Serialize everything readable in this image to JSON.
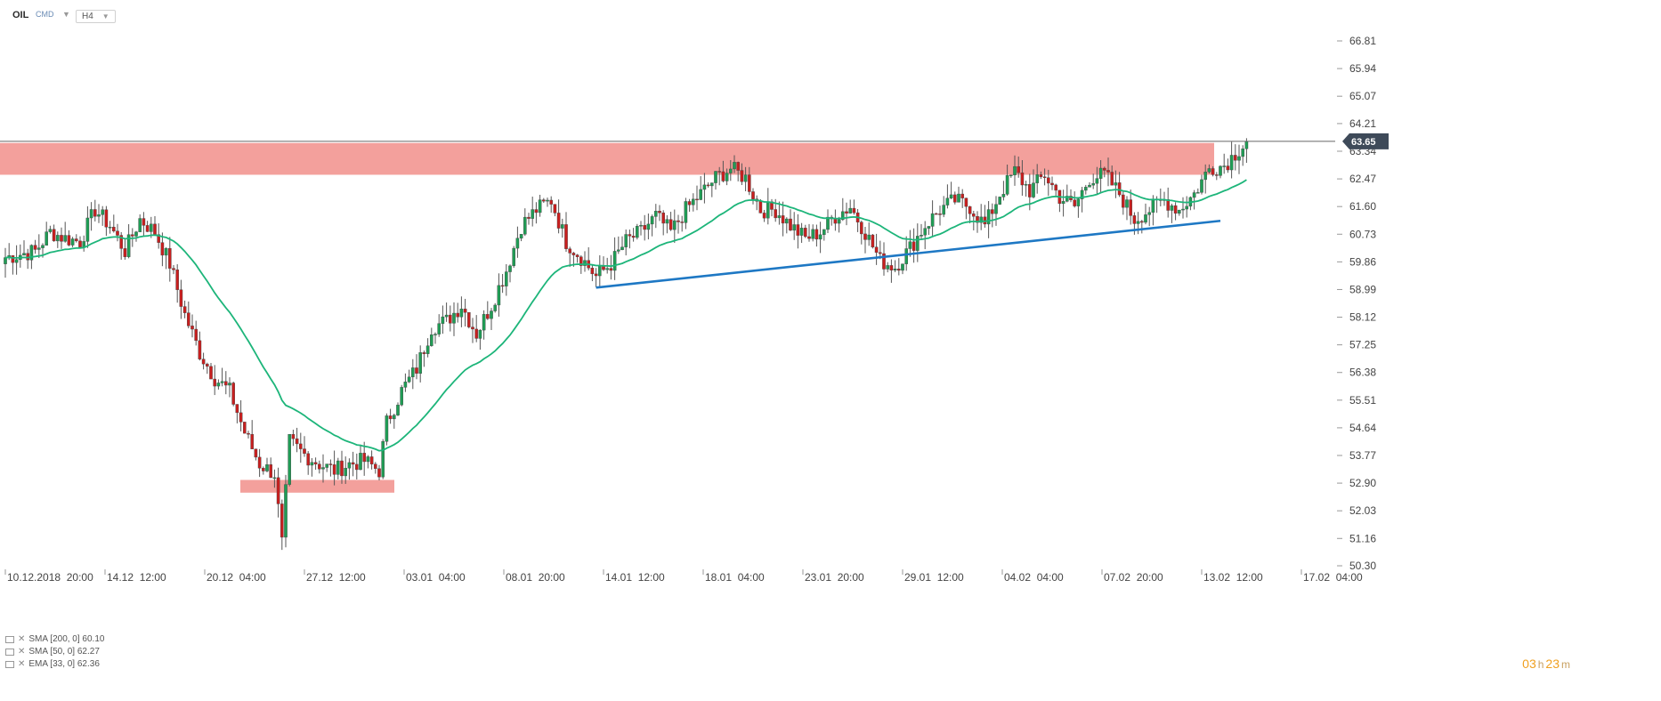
{
  "toolbar": {
    "symbol": "OIL",
    "instrument_type": "CMD",
    "timeframe": "H4"
  },
  "chart_data": {
    "type": "candlestick",
    "symbol": "OIL",
    "timeframe": "H4",
    "ylim": [
      50.3,
      67.5
    ],
    "y_ticks": [
      "66.81",
      "65.94",
      "65.07",
      "64.21",
      "63.34",
      "62.47",
      "61.60",
      "60.73",
      "59.86",
      "58.99",
      "58.12",
      "57.25",
      "56.38",
      "55.51",
      "54.64",
      "53.77",
      "52.90",
      "52.03",
      "51.16",
      "50.30"
    ],
    "x_ticks": [
      "10.12.2018  20:00",
      "14.12  12:00",
      "20.12  04:00",
      "27.12  12:00",
      "03.01  04:00",
      "08.01  20:00",
      "14.01  12:00",
      "18.01  04:00",
      "23.01  20:00",
      "29.01  12:00",
      "04.02  04:00",
      "07.02  20:00",
      "13.02  12:00",
      "17.02  04:00"
    ],
    "current_price": {
      "value": 63.65,
      "label": "63.65"
    },
    "resistance_zone": [
      62.6,
      63.6
    ],
    "support_zone": [
      52.6,
      53.0
    ],
    "trendline": {
      "from_bar": 158,
      "from_price": 59.05,
      "to_bar": 325,
      "to_price": 61.15
    },
    "indicators": [
      {
        "name": "SMA",
        "period": 200,
        "offset": 0,
        "value": "60.10",
        "text": "SMA [200,  0] 60.10"
      },
      {
        "name": "SMA",
        "period": 50,
        "offset": 0,
        "value": "62.27",
        "text": "SMA [50,  0] 62.27"
      },
      {
        "name": "EMA",
        "period": 33,
        "offset": 0,
        "value": "62.36",
        "text": "EMA [33,  0] 62.36",
        "color": "#1db57a"
      }
    ],
    "anchors": [
      [
        0,
        60.0
      ],
      [
        8,
        60.2
      ],
      [
        12,
        60.8
      ],
      [
        16,
        60.6
      ],
      [
        20,
        60.5
      ],
      [
        24,
        61.5
      ],
      [
        28,
        61.0
      ],
      [
        32,
        60.2
      ],
      [
        36,
        61.2
      ],
      [
        40,
        60.8
      ],
      [
        44,
        59.8
      ],
      [
        48,
        58.2
      ],
      [
        52,
        57.0
      ],
      [
        56,
        56.2
      ],
      [
        60,
        55.8
      ],
      [
        64,
        54.5
      ],
      [
        68,
        53.5
      ],
      [
        72,
        53.2
      ],
      [
        74,
        51.0
      ],
      [
        76,
        54.2
      ],
      [
        80,
        53.8
      ],
      [
        84,
        53.5
      ],
      [
        88,
        53.3
      ],
      [
        92,
        53.5
      ],
      [
        96,
        53.6
      ],
      [
        100,
        53.3
      ],
      [
        102,
        54.8
      ],
      [
        106,
        55.8
      ],
      [
        110,
        56.5
      ],
      [
        114,
        57.8
      ],
      [
        118,
        58.0
      ],
      [
        122,
        58.5
      ],
      [
        126,
        57.6
      ],
      [
        130,
        58.5
      ],
      [
        134,
        59.6
      ],
      [
        138,
        61.0
      ],
      [
        142,
        61.5
      ],
      [
        146,
        61.8
      ],
      [
        150,
        60.5
      ],
      [
        154,
        60.0
      ],
      [
        158,
        59.4
      ],
      [
        162,
        59.8
      ],
      [
        166,
        60.5
      ],
      [
        170,
        60.8
      ],
      [
        174,
        61.3
      ],
      [
        178,
        60.8
      ],
      [
        182,
        61.5
      ],
      [
        186,
        62.0
      ],
      [
        190,
        62.5
      ],
      [
        194,
        62.8
      ],
      [
        198,
        62.5
      ],
      [
        202,
        61.5
      ],
      [
        206,
        61.5
      ],
      [
        210,
        61.0
      ],
      [
        214,
        60.6
      ],
      [
        218,
        60.8
      ],
      [
        222,
        61.3
      ],
      [
        226,
        61.6
      ],
      [
        230,
        60.8
      ],
      [
        234,
        59.9
      ],
      [
        238,
        59.7
      ],
      [
        242,
        60.3
      ],
      [
        246,
        61.0
      ],
      [
        250,
        61.5
      ],
      [
        254,
        61.8
      ],
      [
        258,
        61.6
      ],
      [
        262,
        61.0
      ],
      [
        266,
        62.0
      ],
      [
        270,
        62.7
      ],
      [
        274,
        62.1
      ],
      [
        278,
        62.6
      ],
      [
        282,
        61.9
      ],
      [
        286,
        61.6
      ],
      [
        290,
        62.5
      ],
      [
        294,
        62.6
      ],
      [
        298,
        62.0
      ],
      [
        302,
        61.2
      ],
      [
        306,
        61.5
      ],
      [
        310,
        61.8
      ],
      [
        314,
        61.5
      ],
      [
        318,
        62.0
      ],
      [
        322,
        62.8
      ],
      [
        326,
        62.9
      ],
      [
        330,
        63.4
      ],
      [
        332,
        63.65
      ]
    ]
  }
}
